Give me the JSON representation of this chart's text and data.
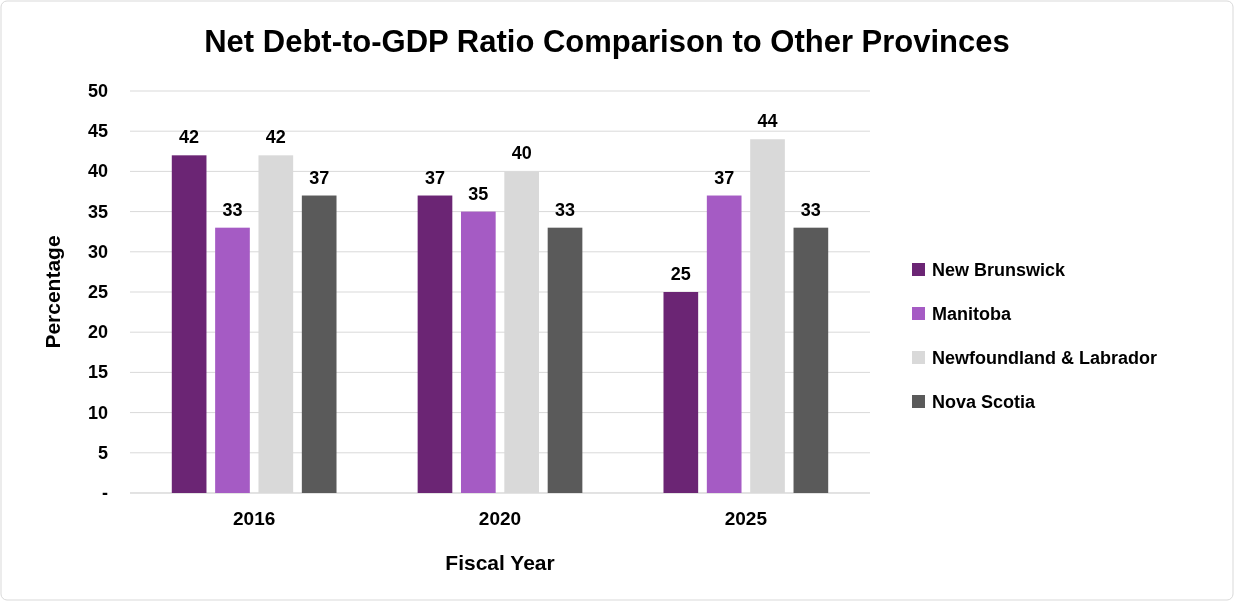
{
  "chart_data": {
    "type": "bar",
    "title": "Net Debt-to-GDP Ratio Comparison to Other Provinces",
    "xlabel": "Fiscal Year",
    "ylabel": "Percentage",
    "categories": [
      "2016",
      "2020",
      "2025"
    ],
    "series": [
      {
        "name": "New Brunswick",
        "color": "#6b2574",
        "values": [
          42,
          37,
          25
        ]
      },
      {
        "name": "Manitoba",
        "color": "#a55bc4",
        "values": [
          33,
          35,
          37
        ]
      },
      {
        "name": "Newfoundland & Labrador",
        "color": "#d9d9d9",
        "values": [
          42,
          40,
          44
        ]
      },
      {
        "name": "Nova Scotia",
        "color": "#5a5a5a",
        "values": [
          37,
          33,
          33
        ]
      }
    ],
    "ylim": [
      0,
      50
    ],
    "yticks": [
      {
        "value": 0,
        "label": "-"
      },
      5,
      10,
      15,
      20,
      25,
      30,
      35,
      40,
      45,
      50
    ],
    "grid": "y",
    "legend": "right",
    "data_labels": true
  }
}
